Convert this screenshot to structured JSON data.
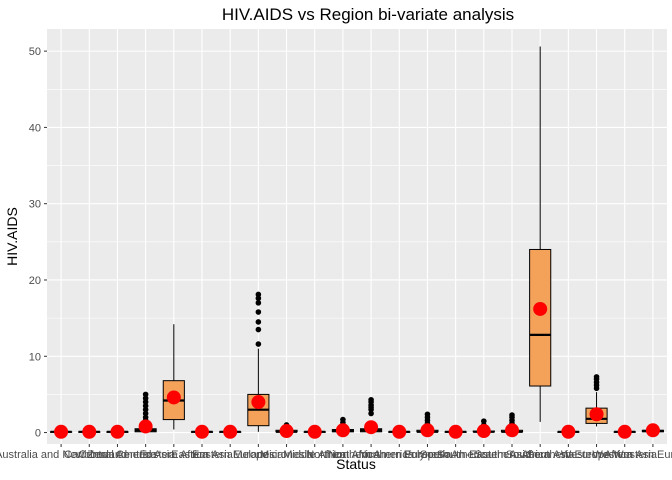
{
  "chart_data": {
    "type": "box",
    "title": "HIV.AIDS vs Region bi-variate analysis",
    "xlabel": "Status",
    "ylabel": "HIV.AIDS",
    "ylim": [
      -1.5,
      52.9
    ],
    "y_ticks": [
      0,
      10,
      20,
      30,
      40,
      50
    ],
    "categories": [
      "Australia and New Zealand",
      "Caribbean",
      "Central America",
      "Central Asia",
      "Eastern Africa",
      "Eastern Asia",
      "Eastern Europe",
      "Melanesia",
      "Micronesia",
      "Middle Africa",
      "Northern Africa",
      "Northern America",
      "Northern Europe",
      "Polynesia",
      "South America",
      "South-Eastern Asia",
      "Southern Africa",
      "Southern Asia",
      "Southern Europe",
      "Western Africa",
      "Western Asia",
      "Western Europe"
    ],
    "boxes": [
      {
        "min": 0.1,
        "q1": 0.1,
        "median": 0.1,
        "q3": 0.1,
        "max": 0.1,
        "mean": 0.1,
        "outliers": []
      },
      {
        "min": 0.1,
        "q1": 0.1,
        "median": 0.1,
        "q3": 0.1,
        "max": 0.1,
        "mean": 0.1,
        "outliers": []
      },
      {
        "min": 0.1,
        "q1": 0.1,
        "median": 0.1,
        "q3": 0.1,
        "max": 0.1,
        "mean": 0.1,
        "outliers": []
      },
      {
        "min": 0.1,
        "q1": 0.1,
        "median": 0.3,
        "q3": 0.5,
        "max": 0.8,
        "mean": 0.8,
        "outliers": [
          1.2,
          1.6,
          2.0,
          2.5,
          3.0,
          3.5,
          4.0,
          4.5,
          5.0
        ]
      },
      {
        "min": 0.4,
        "q1": 1.7,
        "median": 4.2,
        "q3": 6.8,
        "max": 14.2,
        "mean": 4.6,
        "outliers": []
      },
      {
        "min": 0.1,
        "q1": 0.1,
        "median": 0.1,
        "q3": 0.1,
        "max": 0.1,
        "mean": 0.1,
        "outliers": []
      },
      {
        "min": 0.1,
        "q1": 0.1,
        "median": 0.1,
        "q3": 0.1,
        "max": 0.1,
        "mean": 0.1,
        "outliers": []
      },
      {
        "min": 0.1,
        "q1": 0.9,
        "median": 3.0,
        "q3": 5.0,
        "max": 11.0,
        "mean": 4.0,
        "outliers": [
          11.6,
          13.5,
          14.5,
          15.8,
          17.0,
          17.6,
          18.1
        ]
      },
      {
        "min": 0.1,
        "q1": 0.1,
        "median": 0.1,
        "q3": 0.3,
        "max": 0.5,
        "mean": 0.2,
        "outliers": [
          0.8,
          1.0
        ]
      },
      {
        "min": 0.1,
        "q1": 0.1,
        "median": 0.1,
        "q3": 0.1,
        "max": 0.1,
        "mean": 0.1,
        "outliers": []
      },
      {
        "min": 0.1,
        "q1": 0.1,
        "median": 0.2,
        "q3": 0.4,
        "max": 0.6,
        "mean": 0.3,
        "outliers": [
          1.0,
          1.3,
          1.7
        ]
      },
      {
        "min": 0.1,
        "q1": 0.1,
        "median": 0.3,
        "q3": 0.5,
        "max": 0.8,
        "mean": 0.7,
        "outliers": [
          2.5,
          3.0,
          3.3,
          3.6,
          4.0,
          4.3
        ]
      },
      {
        "min": 0.1,
        "q1": 0.1,
        "median": 0.1,
        "q3": 0.1,
        "max": 0.1,
        "mean": 0.1,
        "outliers": []
      },
      {
        "min": 0.1,
        "q1": 0.1,
        "median": 0.1,
        "q3": 0.3,
        "max": 0.5,
        "mean": 0.3,
        "outliers": [
          0.8,
          1.2,
          1.6,
          2.0,
          2.4
        ]
      },
      {
        "min": 0.1,
        "q1": 0.1,
        "median": 0.1,
        "q3": 0.1,
        "max": 0.1,
        "mean": 0.1,
        "outliers": []
      },
      {
        "min": 0.1,
        "q1": 0.1,
        "median": 0.1,
        "q3": 0.2,
        "max": 0.3,
        "mean": 0.2,
        "outliers": [
          0.6,
          1.0,
          1.5
        ]
      },
      {
        "min": 0.1,
        "q1": 0.1,
        "median": 0.1,
        "q3": 0.3,
        "max": 0.5,
        "mean": 0.3,
        "outliers": [
          0.8,
          1.2,
          1.6,
          2.0,
          2.3
        ]
      },
      {
        "min": 1.4,
        "q1": 6.1,
        "median": 12.8,
        "q3": 24.0,
        "max": 50.6,
        "mean": 16.2,
        "outliers": []
      },
      {
        "min": 0.1,
        "q1": 0.1,
        "median": 0.1,
        "q3": 0.1,
        "max": 0.1,
        "mean": 0.1,
        "outliers": []
      },
      {
        "min": 0.8,
        "q1": 1.2,
        "median": 1.8,
        "q3": 3.2,
        "max": 5.3,
        "mean": 2.4,
        "outliers": [
          5.8,
          6.2,
          6.6,
          7.0,
          7.3
        ]
      },
      {
        "min": 0.1,
        "q1": 0.1,
        "median": 0.1,
        "q3": 0.1,
        "max": 0.1,
        "mean": 0.1,
        "outliers": []
      },
      {
        "min": 0.1,
        "q1": 0.1,
        "median": 0.2,
        "q3": 0.3,
        "max": 0.3,
        "mean": 0.3,
        "outliers": []
      }
    ],
    "grid": true,
    "legend": "none",
    "colors": {
      "panel": "#ebebeb",
      "grid": "#ffffff",
      "box_fill": "#f4a15a",
      "box_line": "#000000",
      "mean_point": "#ff0000",
      "outlier": "#000000",
      "tick_text": "#4d4d4d"
    }
  }
}
